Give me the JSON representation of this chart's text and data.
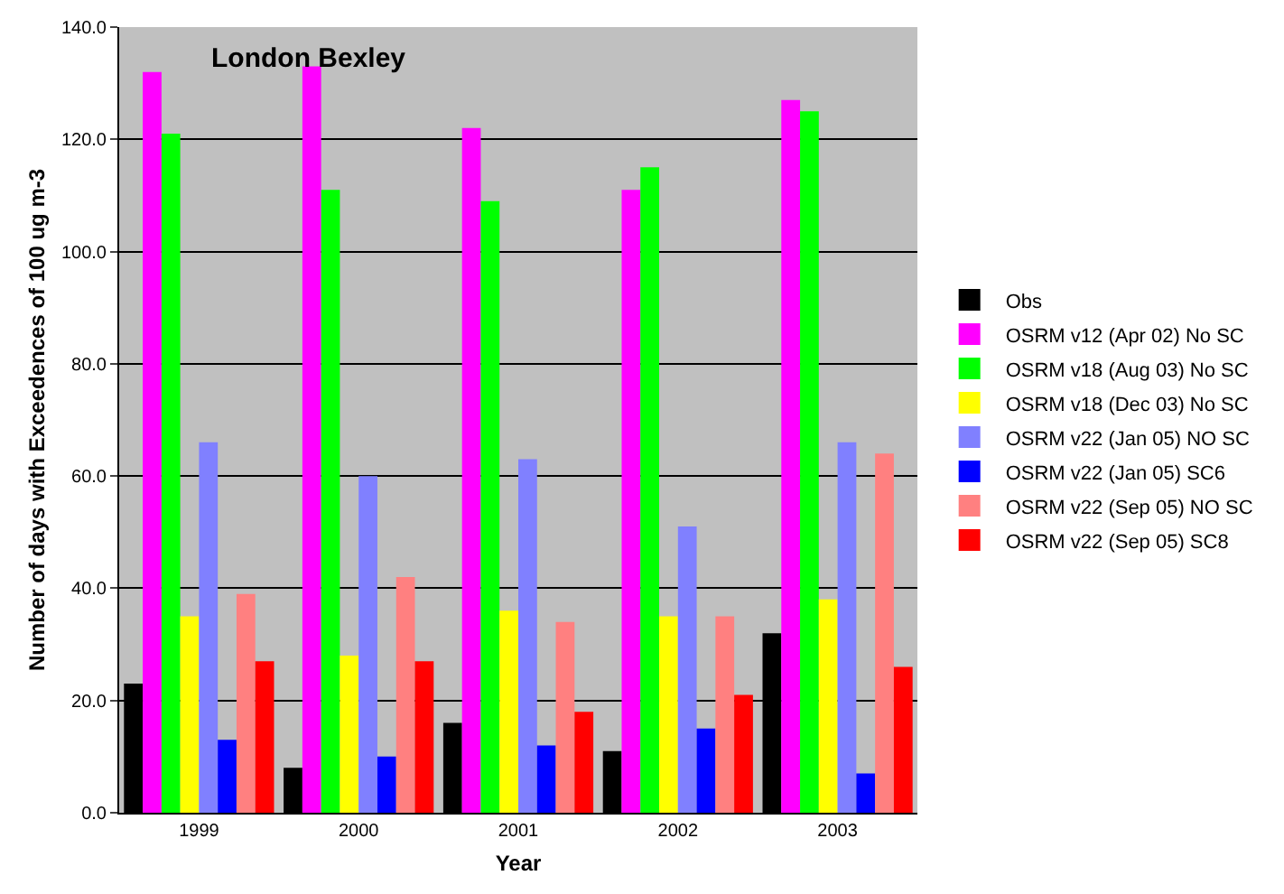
{
  "chart_data": {
    "type": "bar",
    "title": "London Bexley",
    "xlabel": "Year",
    "ylabel": "Number of days with Exceedences of 100 ug m-3",
    "categories": [
      "1999",
      "2000",
      "2001",
      "2002",
      "2003"
    ],
    "series": [
      {
        "name": "Obs",
        "color": "#000000",
        "values": [
          23,
          8,
          16,
          11,
          32
        ]
      },
      {
        "name": "OSRM v12 (Apr 02) No SC",
        "color": "#ff00ff",
        "values": [
          132,
          133,
          122,
          111,
          127
        ]
      },
      {
        "name": "OSRM v18 (Aug 03) No SC",
        "color": "#00ff00",
        "values": [
          121,
          111,
          109,
          115,
          125
        ]
      },
      {
        "name": "OSRM v18 (Dec 03) No SC",
        "color": "#ffff00",
        "values": [
          35,
          28,
          36,
          35,
          38
        ]
      },
      {
        "name": "OSRM v22 (Jan 05) NO SC",
        "color": "#8080ff",
        "values": [
          66,
          60,
          63,
          51,
          66
        ]
      },
      {
        "name": "OSRM v22 (Jan 05) SC6",
        "color": "#0000ff",
        "values": [
          13,
          10,
          12,
          15,
          7
        ]
      },
      {
        "name": "OSRM v22 (Sep 05) NO SC",
        "color": "#ff8080",
        "values": [
          39,
          42,
          34,
          35,
          64
        ]
      },
      {
        "name": "OSRM v22 (Sep 05) SC8",
        "color": "#ff0000",
        "values": [
          27,
          27,
          18,
          21,
          26
        ]
      }
    ],
    "ylim": [
      0,
      140
    ],
    "yticks": [
      {
        "value": 0,
        "label": "0.0"
      },
      {
        "value": 20,
        "label": "20.0"
      },
      {
        "value": 40,
        "label": "40.0"
      },
      {
        "value": 60,
        "label": "60.0"
      },
      {
        "value": 80,
        "label": "80.0"
      },
      {
        "value": 100,
        "label": "100.0"
      },
      {
        "value": 120,
        "label": "120.0"
      },
      {
        "value": 140,
        "label": "140.0"
      }
    ],
    "grid": "y",
    "legend": "right"
  }
}
